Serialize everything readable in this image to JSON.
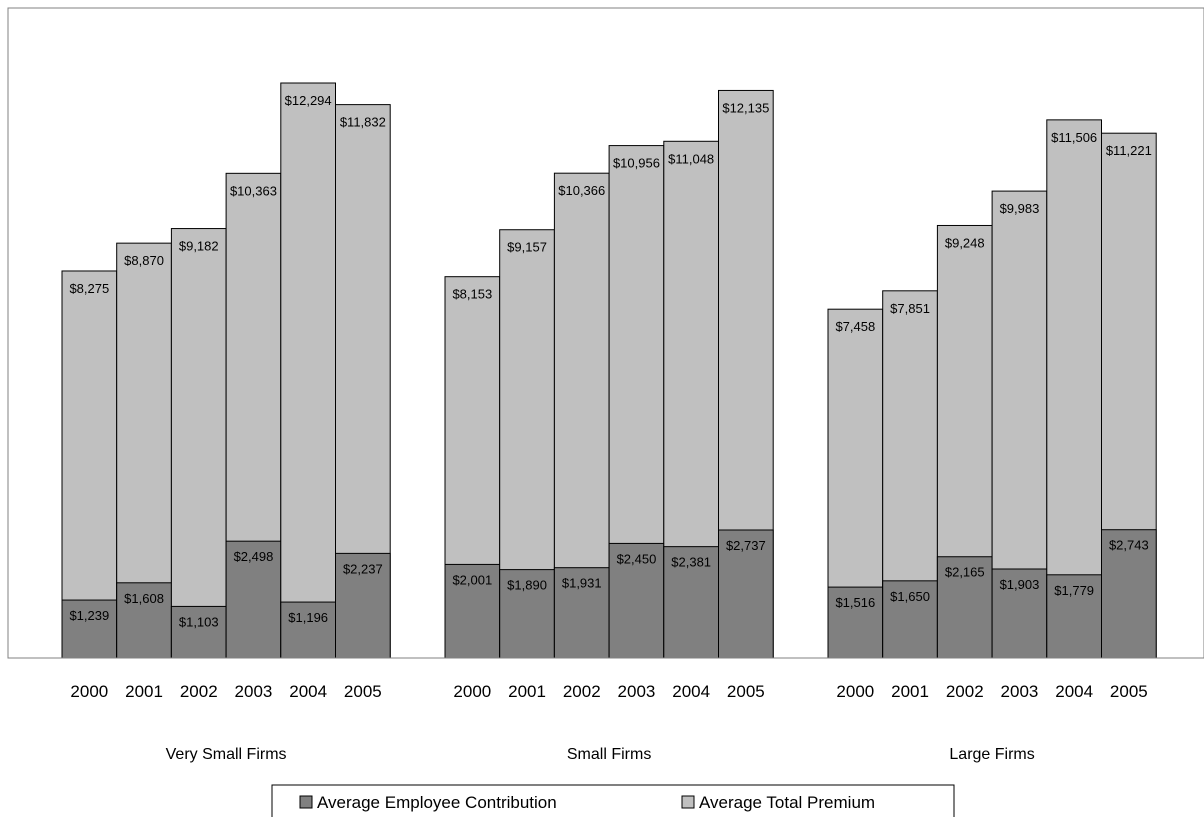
{
  "chart_data": {
    "type": "bar",
    "subtype": "overlapped",
    "groups": [
      {
        "label": "Very Small Firms",
        "categories": [
          "2000",
          "2001",
          "2002",
          "2003",
          "2004",
          "2005"
        ],
        "employee_contribution": [
          1239,
          1608,
          1103,
          2498,
          1196,
          2237
        ],
        "total_premium": [
          8275,
          8870,
          9182,
          10363,
          12294,
          11832
        ],
        "employee_labels": [
          "$1,239",
          "$1,608",
          "$1,103",
          "$2,498",
          "$1,196",
          "$2,237"
        ],
        "premium_labels": [
          "$8,275",
          "$8,870",
          "$9,182",
          "$10,363",
          "$12,294",
          "$11,832"
        ]
      },
      {
        "label": "Small Firms",
        "categories": [
          "2000",
          "2001",
          "2002",
          "2003",
          "2004",
          "2005"
        ],
        "employee_contribution": [
          2001,
          1890,
          1931,
          2450,
          2381,
          2737
        ],
        "total_premium": [
          8153,
          9157,
          10366,
          10956,
          11048,
          12135
        ],
        "employee_labels": [
          "$2,001",
          "$1,890",
          "$1,931",
          "$2,450",
          "$2,381",
          "$2,737"
        ],
        "premium_labels": [
          "$8,153",
          "$9,157",
          "$10,366",
          "$10,956",
          "$11,048",
          "$12,135"
        ]
      },
      {
        "label": "Large Firms",
        "categories": [
          "2000",
          "2001",
          "2002",
          "2003",
          "2004",
          "2005"
        ],
        "employee_contribution": [
          1516,
          1650,
          2165,
          1903,
          1779,
          2743
        ],
        "total_premium": [
          7458,
          7851,
          9248,
          9983,
          11506,
          11221
        ],
        "employee_labels": [
          "$1,516",
          "$1,650",
          "$2,165",
          "$1,903",
          "$1,779",
          "$2,743"
        ],
        "premium_labels": [
          "$7,458",
          "$7,851",
          "$9,248",
          "$9,983",
          "$11,506",
          "$11,221"
        ]
      }
    ],
    "series": [
      {
        "name": "Average Employee Contribution",
        "color": "#808080"
      },
      {
        "name": "Average Total Premium",
        "color": "#c0c0c0"
      }
    ],
    "ylim": [
      0,
      13500
    ],
    "grid": false,
    "legend_position": "bottom-center",
    "bar_outline_color": "#000000"
  }
}
